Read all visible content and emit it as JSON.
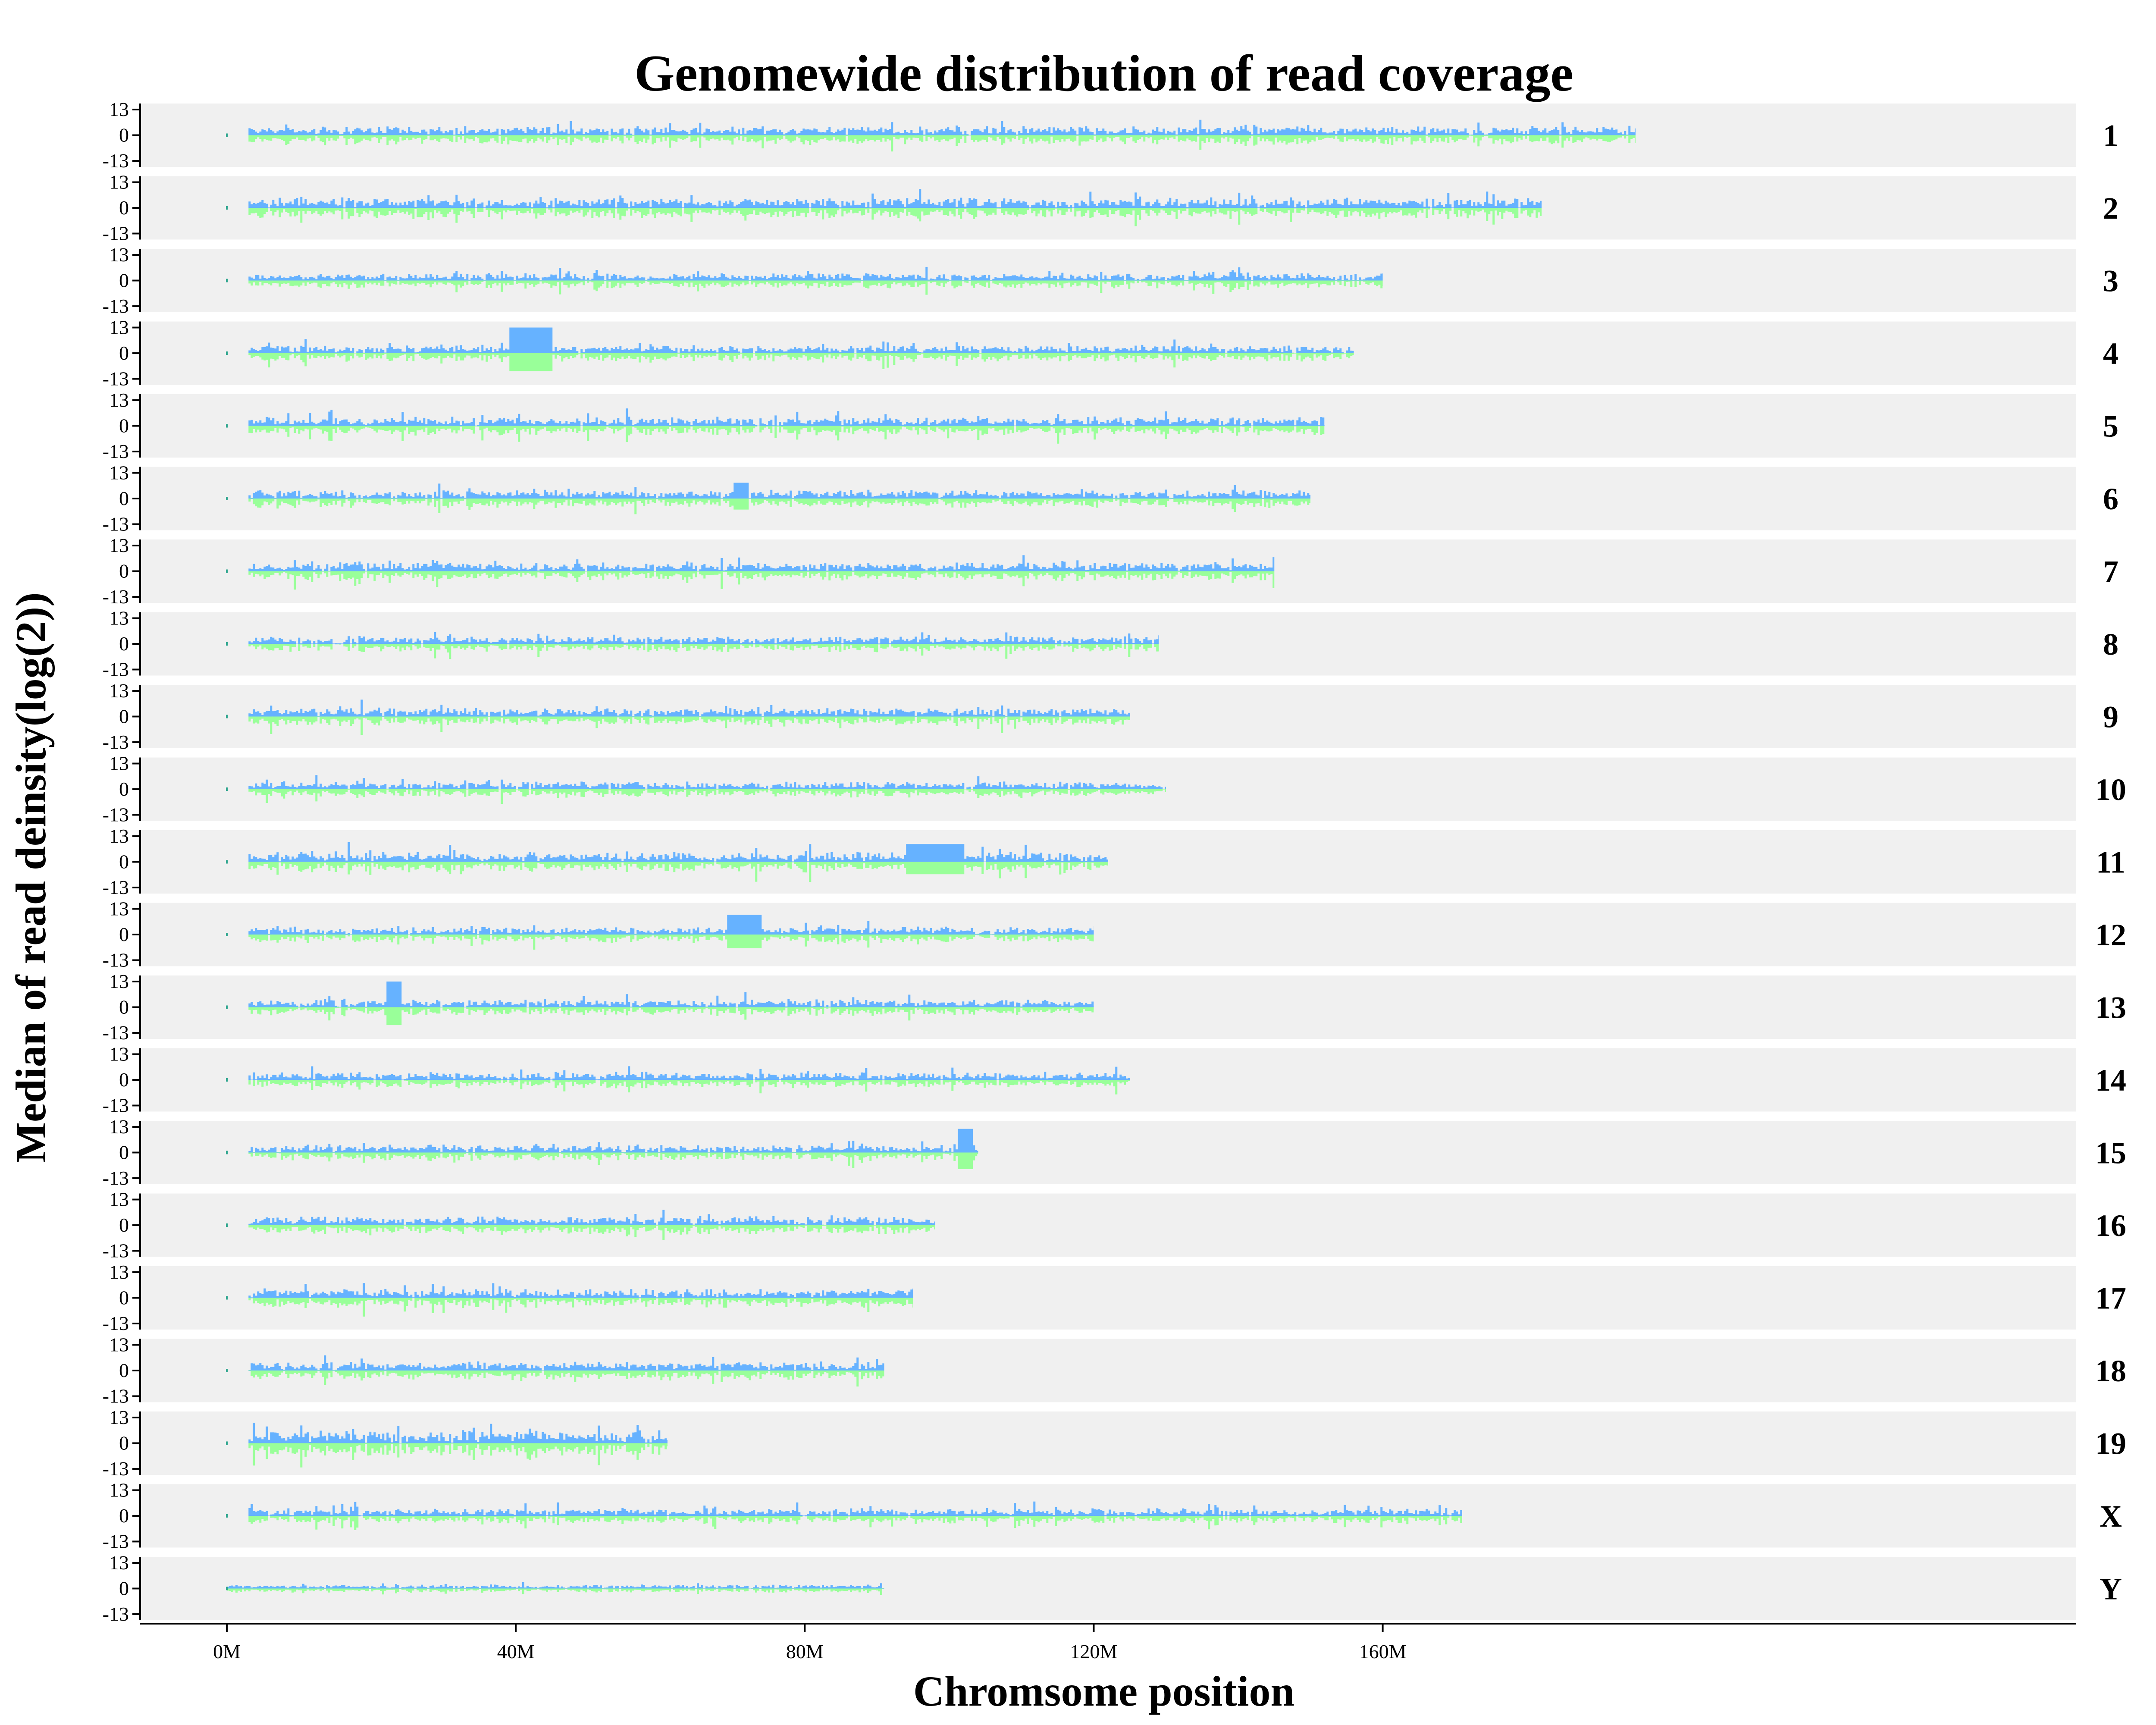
{
  "chart_data": {
    "type": "area",
    "title": "Genomewide distribution of read coverage",
    "xlabel": "Chromsome position",
    "ylabel": "Median of read deinsity(log(2))",
    "x_unit": "Mb",
    "xlim": [
      -12,
      256
    ],
    "ylim": [
      -13,
      13
    ],
    "x_ticks": [
      {
        "value": 0,
        "label": "0M"
      },
      {
        "value": 40,
        "label": "40M"
      },
      {
        "value": 80,
        "label": "80M"
      },
      {
        "value": 120,
        "label": "120M"
      },
      {
        "value": 160,
        "label": "160M"
      }
    ],
    "y_ticks": [
      {
        "value": 13,
        "label": "13"
      },
      {
        "value": 0,
        "label": "0"
      },
      {
        "value": -13,
        "label": "-13"
      }
    ],
    "grid": false,
    "colors": {
      "positive": "#66b2ff",
      "negative": "#99ff99",
      "panel_bg": "#f0f0f0"
    },
    "panels": [
      {
        "chromosome": "1",
        "start": 3,
        "end": 195,
        "typical_amplitude": 3.5
      },
      {
        "chromosome": "2",
        "start": 3,
        "end": 182,
        "typical_amplitude": 4
      },
      {
        "chromosome": "3",
        "start": 3,
        "end": 160,
        "typical_amplitude": 3
      },
      {
        "chromosome": "4",
        "start": 3,
        "end": 156,
        "typical_amplitude": 3.2,
        "features": [
          {
            "start": 39,
            "end": 45,
            "value": 13
          }
        ]
      },
      {
        "chromosome": "5",
        "start": 3,
        "end": 152,
        "typical_amplitude": 3.5
      },
      {
        "chromosome": "6",
        "start": 3,
        "end": 150,
        "typical_amplitude": 3.5,
        "features": [
          {
            "start": 70,
            "end": 72,
            "value": 8
          }
        ]
      },
      {
        "chromosome": "7",
        "start": 3,
        "end": 145,
        "typical_amplitude": 3.5
      },
      {
        "chromosome": "8",
        "start": 3,
        "end": 129,
        "typical_amplitude": 3
      },
      {
        "chromosome": "9",
        "start": 3,
        "end": 125,
        "typical_amplitude": 3.5
      },
      {
        "chromosome": "10",
        "start": 3,
        "end": 130,
        "typical_amplitude": 3
      },
      {
        "chromosome": "11",
        "start": 3,
        "end": 122,
        "typical_amplitude": 4,
        "features": [
          {
            "start": 94,
            "end": 102,
            "value": 9
          }
        ]
      },
      {
        "chromosome": "12",
        "start": 3,
        "end": 120,
        "typical_amplitude": 3,
        "features": [
          {
            "start": 69,
            "end": 74,
            "value": 10
          }
        ]
      },
      {
        "chromosome": "13",
        "start": 3,
        "end": 120,
        "typical_amplitude": 3,
        "features": [
          {
            "start": 22,
            "end": 24,
            "value": 13
          }
        ]
      },
      {
        "chromosome": "14",
        "start": 3,
        "end": 125,
        "typical_amplitude": 3
      },
      {
        "chromosome": "15",
        "start": 3,
        "end": 104,
        "typical_amplitude": 3,
        "features": [
          {
            "start": 101,
            "end": 103,
            "value": 12
          }
        ]
      },
      {
        "chromosome": "16",
        "start": 3,
        "end": 98,
        "typical_amplitude": 3.5
      },
      {
        "chromosome": "17",
        "start": 3,
        "end": 95,
        "typical_amplitude": 3.5
      },
      {
        "chromosome": "18",
        "start": 3,
        "end": 91,
        "typical_amplitude": 3.5
      },
      {
        "chromosome": "19",
        "start": 3,
        "end": 61,
        "typical_amplitude": 5
      },
      {
        "chromosome": "X",
        "start": 3,
        "end": 171,
        "typical_amplitude": 3
      },
      {
        "chromosome": "Y",
        "start": 0,
        "end": 91,
        "typical_amplitude": 1.5
      }
    ]
  }
}
